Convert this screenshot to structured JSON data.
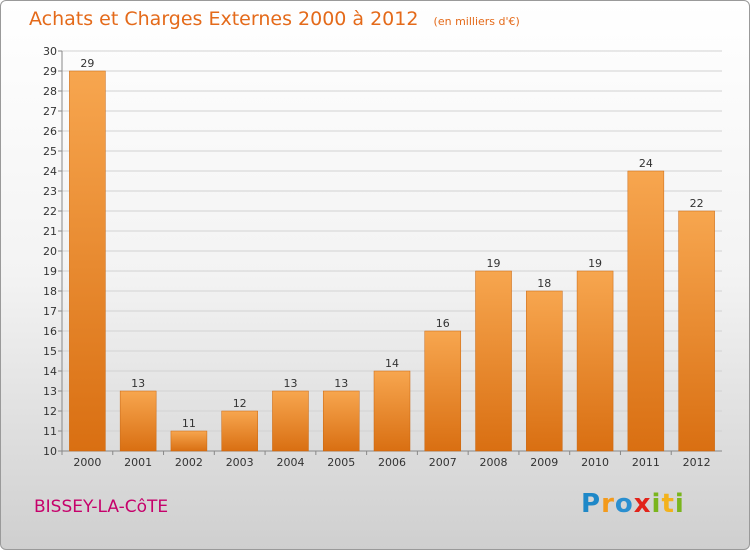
{
  "header": {
    "title": "Achats et Charges Externes 2000 à 2012",
    "unit": "(en milliers d'€)"
  },
  "footer": {
    "commune": "BISSEY-LA-CôTE",
    "logo": "Proxiti"
  },
  "colors": {
    "bar_light": "#f7a64f",
    "bar_dark": "#d96f12",
    "title": "#e46a1a",
    "commune": "#c6006b"
  },
  "chart_data": {
    "type": "bar",
    "categories": [
      "2000",
      "2001",
      "2002",
      "2003",
      "2004",
      "2005",
      "2006",
      "2007",
      "2008",
      "2009",
      "2010",
      "2011",
      "2012"
    ],
    "values": [
      29,
      13,
      11,
      12,
      13,
      13,
      14,
      16,
      19,
      18,
      19,
      24,
      22
    ],
    "title": "Achats et Charges Externes 2000 à 2012",
    "ylim": [
      10,
      30
    ],
    "yticks": [
      10,
      11,
      12,
      13,
      14,
      15,
      16,
      17,
      18,
      19,
      20,
      21,
      22,
      23,
      24,
      25,
      26,
      27,
      28,
      29,
      30
    ],
    "grid": true,
    "data_labels": true
  }
}
